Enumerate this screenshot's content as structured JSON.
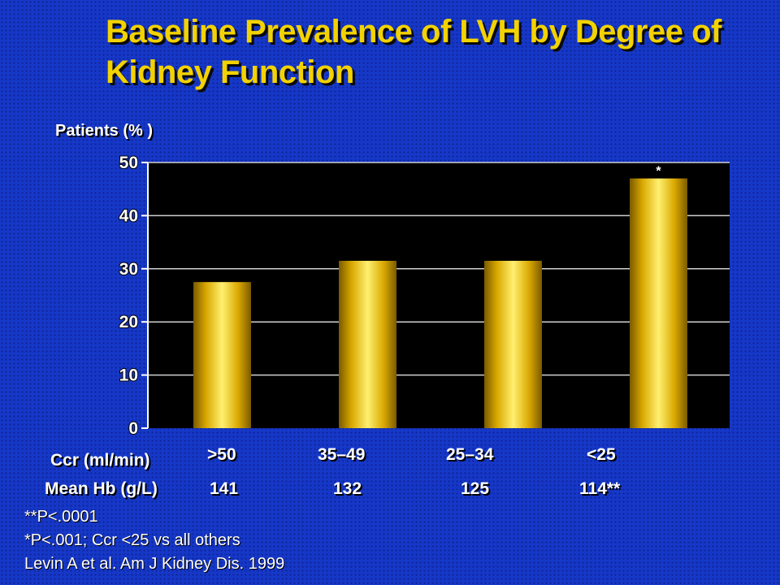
{
  "title": "Baseline Prevalence of LVH by Degree of Kidney Function",
  "chart_data": {
    "type": "bar",
    "ylabel": "Patients (% )",
    "ylim": [
      0,
      50
    ],
    "yticks": [
      0,
      10,
      20,
      30,
      40,
      50
    ],
    "grid": true,
    "categories": [
      ">50",
      "35–49",
      "25–34",
      "<25"
    ],
    "values": [
      27.5,
      31.5,
      31.5,
      47
    ],
    "bar_annotations": [
      "",
      "",
      "",
      "*"
    ],
    "bar_color": "#e8c21a",
    "plot_background": "#000000"
  },
  "rows": [
    {
      "label": "Ccr (ml/min)",
      "values": [
        ">50",
        "35–49",
        "25–34",
        "<25"
      ]
    },
    {
      "label": "Mean Hb (g/L)",
      "values": [
        "141",
        "132",
        "125",
        "114**"
      ]
    }
  ],
  "footnotes": [
    "**P<.0001",
    "*P<.001; Ccr <25 vs all others",
    "Levin A et al. Am J Kidney Dis. 1999"
  ],
  "colors": {
    "background": "#1638c8",
    "title": "#f2d200",
    "text": "#ffffff"
  }
}
